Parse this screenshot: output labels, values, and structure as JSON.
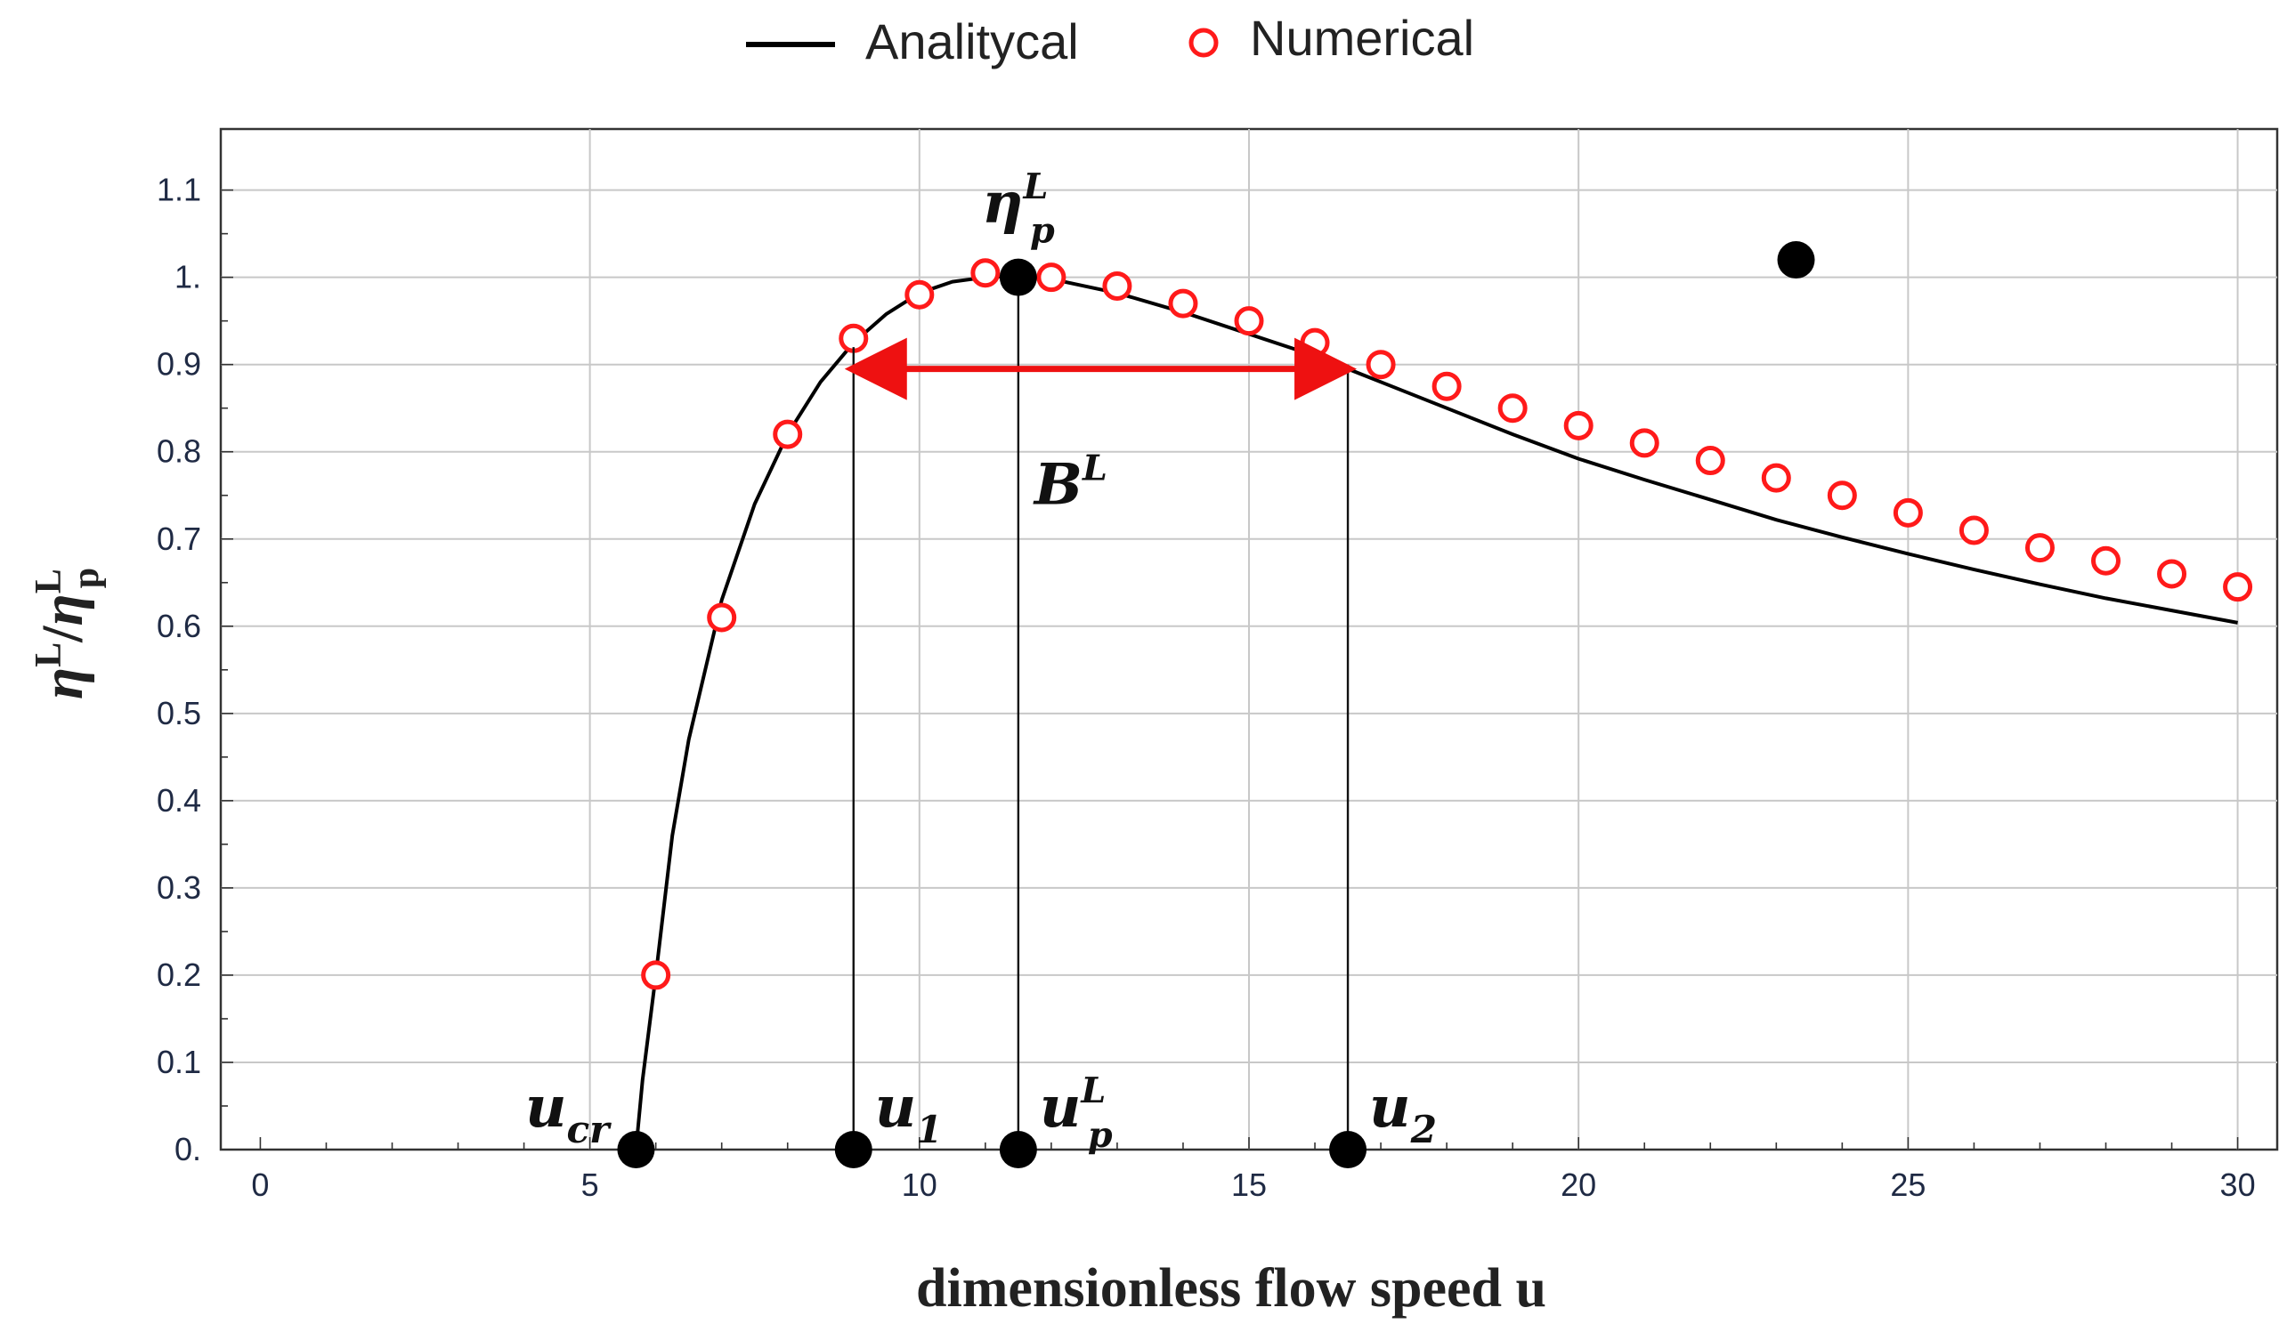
{
  "chart_data": {
    "type": "line",
    "xlabel": "dimensionless flow speed u",
    "ylabel": {
      "base": "η",
      "sup": "L",
      "sep": "/",
      "base2": "η",
      "sub2": "p",
      "sup2": "L"
    },
    "xlim": [
      -0.6,
      30.6
    ],
    "ylim": [
      0,
      1.17
    ],
    "x_ticks": [
      0,
      5,
      10,
      15,
      20,
      25,
      30
    ],
    "x_tick_labels": [
      "0",
      "5",
      "10",
      "15",
      "20",
      "25",
      "30"
    ],
    "y_ticks": [
      0,
      0.1,
      0.2,
      0.3,
      0.4,
      0.5,
      0.6,
      0.7,
      0.8,
      0.9,
      1.0,
      1.1
    ],
    "y_tick_labels": [
      "0.",
      "0.1",
      "0.2",
      "0.3",
      "0.4",
      "0.5",
      "0.6",
      "0.7",
      "0.8",
      "0.9",
      "1.",
      "1.1"
    ],
    "grid": true,
    "legend": {
      "placement": "top-center, outside plot",
      "entries": [
        {
          "label": "Analitycal",
          "style": "line",
          "color": "#000000"
        },
        {
          "label": "Numerical",
          "style": "open-circle",
          "color": "#ff1a1a"
        }
      ]
    },
    "series": [
      {
        "name": "Analitycal",
        "style": "line",
        "color": "#000000",
        "x": [
          5.7,
          5.8,
          6.0,
          6.25,
          6.5,
          7.0,
          7.5,
          8.0,
          8.5,
          9.0,
          9.5,
          10.0,
          10.5,
          11.0,
          11.5,
          12.0,
          13.0,
          14.0,
          15.0,
          16.0,
          17.0,
          18.0,
          19.0,
          20.0,
          21.0,
          22.0,
          23.0,
          24.0,
          25.0,
          26.0,
          27.0,
          28.0,
          29.0,
          30.0
        ],
        "y": [
          0.0,
          0.08,
          0.2,
          0.36,
          0.47,
          0.63,
          0.74,
          0.82,
          0.88,
          0.925,
          0.958,
          0.982,
          0.995,
          1.0,
          1.002,
          0.998,
          0.982,
          0.96,
          0.935,
          0.91,
          0.88,
          0.85,
          0.82,
          0.792,
          0.768,
          0.745,
          0.722,
          0.702,
          0.683,
          0.665,
          0.648,
          0.632,
          0.618,
          0.604
        ]
      },
      {
        "name": "Numerical",
        "style": "open-circle",
        "color": "#ff1a1a",
        "x": [
          6,
          7,
          8,
          9,
          10,
          11,
          12,
          13,
          14,
          15,
          16,
          17,
          18,
          19,
          20,
          21,
          22,
          23,
          24,
          25,
          26,
          27,
          28,
          29,
          30
        ],
        "y": [
          0.2,
          0.61,
          0.82,
          0.93,
          0.98,
          1.005,
          1.0,
          0.99,
          0.97,
          0.95,
          0.925,
          0.9,
          0.875,
          0.85,
          0.83,
          0.81,
          0.79,
          0.77,
          0.75,
          0.73,
          0.71,
          0.69,
          0.675,
          0.66,
          0.645
        ]
      }
    ],
    "annotations": {
      "points": [
        {
          "x": 5.7,
          "y": 0.0,
          "label": {
            "base": "u",
            "sub": "cr"
          },
          "label_side": "left"
        },
        {
          "x": 9.0,
          "y": 0.0,
          "label": {
            "base": "u",
            "sub": "1"
          },
          "label_side": "right"
        },
        {
          "x": 11.5,
          "y": 0.0,
          "label": {
            "base": "u",
            "sub": "p",
            "sup": "L"
          },
          "label_side": "right"
        },
        {
          "x": 16.5,
          "y": 0.0,
          "label": {
            "base": "u",
            "sub": "2"
          },
          "label_side": "right"
        },
        {
          "x": 11.5,
          "y": 1.0,
          "label": {
            "base": "η",
            "sub": "p",
            "sup": "L"
          },
          "label_side": "above"
        },
        {
          "x": 23.3,
          "y": 1.02,
          "label": null
        }
      ],
      "vlines": [
        {
          "x": 9.0,
          "y_top": 0.92
        },
        {
          "x": 11.5,
          "y_top": 1.0
        },
        {
          "x": 16.5,
          "y_top": 0.9
        }
      ],
      "bandwidth_arrow": {
        "x1": 9.0,
        "x2": 16.5,
        "y": 0.895,
        "color": "#ee1111",
        "label": {
          "base": "B",
          "sup": "L"
        }
      }
    }
  }
}
